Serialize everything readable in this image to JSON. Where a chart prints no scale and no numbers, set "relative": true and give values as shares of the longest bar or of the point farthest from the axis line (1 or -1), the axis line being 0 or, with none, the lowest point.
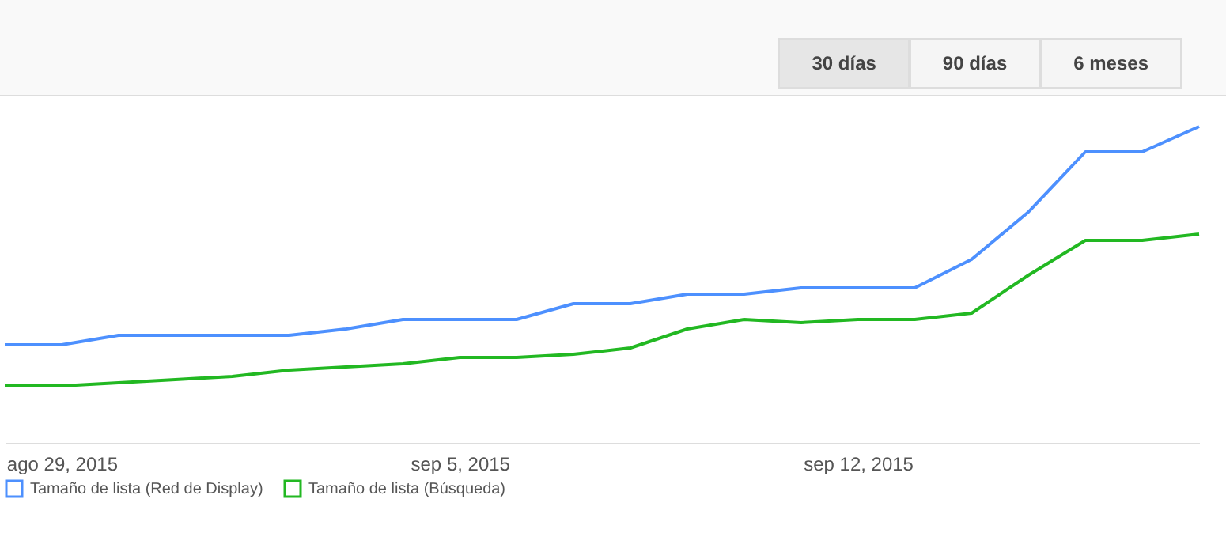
{
  "chart_data": {
    "type": "line",
    "relative": true,
    "legend": "bottom",
    "annotations": [
      "30 días",
      "90 días",
      "6 meses"
    ],
    "x": [
      "2015-08-28",
      "2015-08-29",
      "2015-08-30",
      "2015-08-31",
      "2015-09-01",
      "2015-09-02",
      "2015-09-03",
      "2015-09-04",
      "2015-09-05",
      "2015-09-06",
      "2015-09-07",
      "2015-09-08",
      "2015-09-09",
      "2015-09-10",
      "2015-09-11",
      "2015-09-12",
      "2015-09-13",
      "2015-09-14",
      "2015-09-15",
      "2015-09-16",
      "2015-09-17",
      "2015-09-18"
    ],
    "xlim": [
      "2015-08-28",
      "2015-09-18"
    ],
    "xticks": [
      {
        "value": "2015-08-29",
        "label": "ago 29, 2015"
      },
      {
        "value": "2015-09-05",
        "label": "sep 5, 2015"
      },
      {
        "value": "2015-09-12",
        "label": "sep 12, 2015"
      }
    ],
    "series": [
      {
        "name": "Tamaño de lista (Red de Display)",
        "color": "#4d90fe",
        "values": [
          0.31,
          0.31,
          0.34,
          0.34,
          0.34,
          0.34,
          0.36,
          0.39,
          0.39,
          0.39,
          0.44,
          0.44,
          0.47,
          0.47,
          0.49,
          0.49,
          0.49,
          0.58,
          0.73,
          0.92,
          0.92,
          1
        ]
      },
      {
        "name": "Tamaño de lista (Búsqueda)",
        "color": "#22b822",
        "values": [
          0.18,
          0.18,
          0.19,
          0.2,
          0.21,
          0.23,
          0.24,
          0.25,
          0.27,
          0.27,
          0.28,
          0.3,
          0.36,
          0.39,
          0.38,
          0.39,
          0.39,
          0.41,
          0.53,
          0.64,
          0.64,
          0.66
        ]
      }
    ]
  }
}
